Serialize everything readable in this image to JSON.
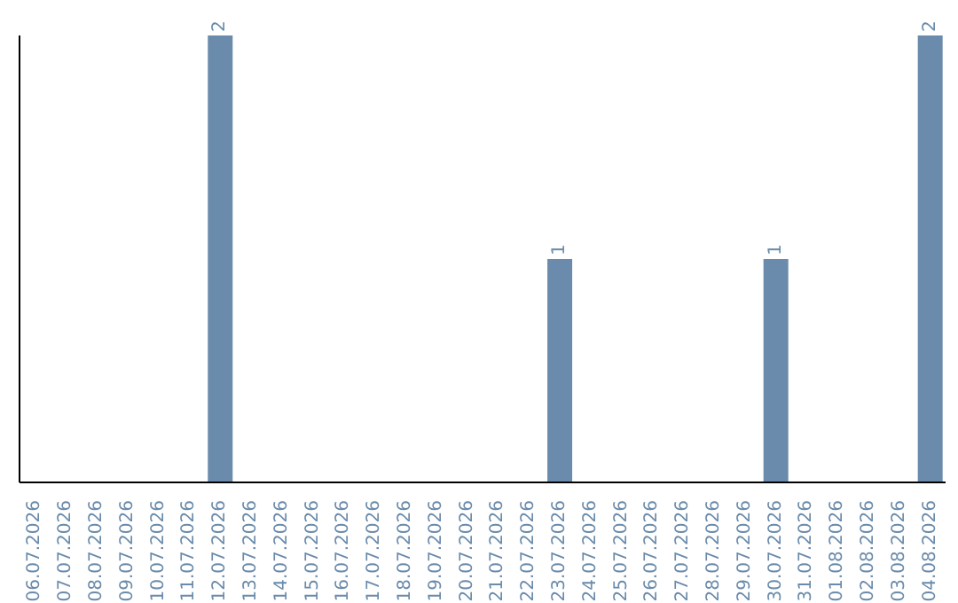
{
  "chart_data": {
    "type": "bar",
    "categories": [
      "06.07.2026",
      "07.07.2026",
      "08.07.2026",
      "09.07.2026",
      "10.07.2026",
      "11.07.2026",
      "12.07.2026",
      "13.07.2026",
      "14.07.2026",
      "15.07.2026",
      "16.07.2026",
      "17.07.2026",
      "18.07.2026",
      "19.07.2026",
      "20.07.2026",
      "21.07.2026",
      "22.07.2026",
      "23.07.2026",
      "24.07.2026",
      "25.07.2026",
      "26.07.2026",
      "27.07.2026",
      "28.07.2026",
      "29.07.2026",
      "30.07.2026",
      "31.07.2026",
      "01.08.2026",
      "02.08.2026",
      "03.08.2026",
      "04.08.2026"
    ],
    "values": [
      0,
      0,
      0,
      0,
      0,
      0,
      2,
      0,
      0,
      0,
      0,
      0,
      0,
      0,
      0,
      0,
      0,
      1,
      0,
      0,
      0,
      0,
      0,
      0,
      1,
      0,
      0,
      0,
      0,
      2
    ],
    "value_labels": [
      null,
      null,
      null,
      null,
      null,
      null,
      "2",
      null,
      null,
      null,
      null,
      null,
      null,
      null,
      null,
      null,
      null,
      "1",
      null,
      null,
      null,
      null,
      null,
      null,
      "1",
      null,
      null,
      null,
      null,
      "2"
    ],
    "color": "#6a8bab"
  }
}
